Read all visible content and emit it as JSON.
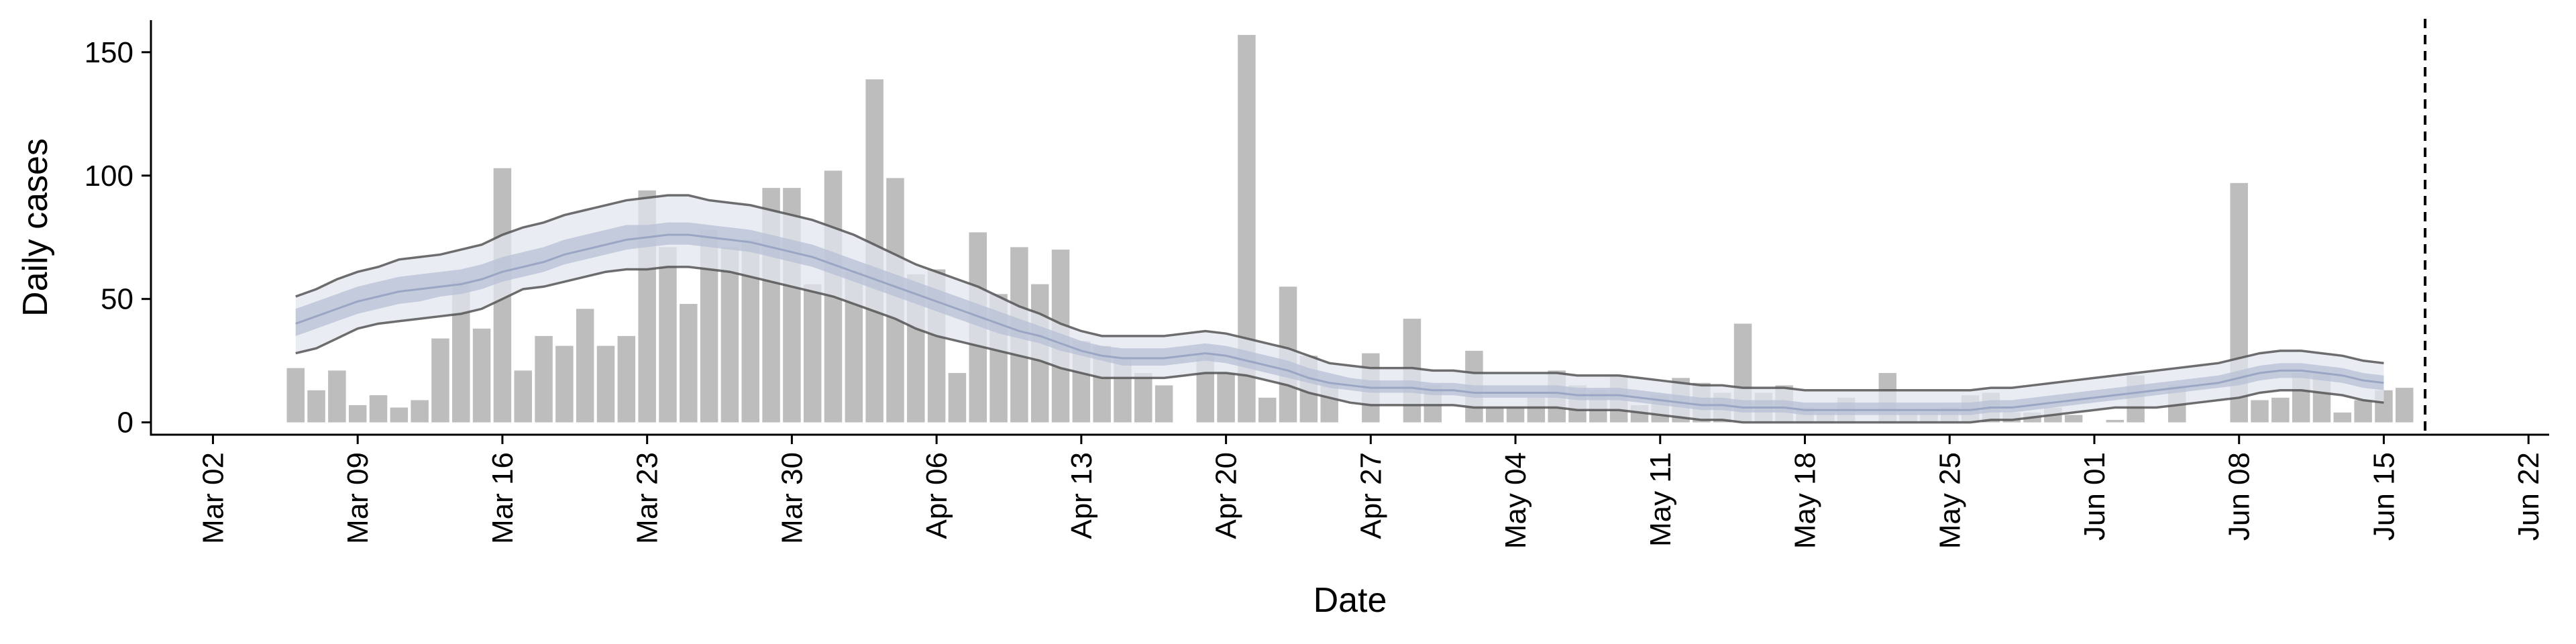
{
  "chart_data": {
    "type": "bar",
    "title": "",
    "xlabel": "Date",
    "ylabel": "Daily cases",
    "x_axis": {
      "range": [
        "2020-02-28",
        "2020-06-23"
      ],
      "ticks": [
        {
          "date": "2020-03-02",
          "label": "Mar 02"
        },
        {
          "date": "2020-03-09",
          "label": "Mar 09"
        },
        {
          "date": "2020-03-16",
          "label": "Mar 16"
        },
        {
          "date": "2020-03-23",
          "label": "Mar 23"
        },
        {
          "date": "2020-03-30",
          "label": "Mar 30"
        },
        {
          "date": "2020-04-06",
          "label": "Apr 06"
        },
        {
          "date": "2020-04-13",
          "label": "Apr 13"
        },
        {
          "date": "2020-04-20",
          "label": "Apr 20"
        },
        {
          "date": "2020-04-27",
          "label": "Apr 27"
        },
        {
          "date": "2020-05-04",
          "label": "May 04"
        },
        {
          "date": "2020-05-11",
          "label": "May 11"
        },
        {
          "date": "2020-05-18",
          "label": "May 18"
        },
        {
          "date": "2020-05-25",
          "label": "May 25"
        },
        {
          "date": "2020-06-01",
          "label": "Jun 01"
        },
        {
          "date": "2020-06-08",
          "label": "Jun 08"
        },
        {
          "date": "2020-06-15",
          "label": "Jun 15"
        },
        {
          "date": "2020-06-22",
          "label": "Jun 22"
        }
      ]
    },
    "y_axis": {
      "range": [
        -5,
        163
      ],
      "ticks": [
        0,
        50,
        100,
        150
      ]
    },
    "grid": false,
    "legend": "none",
    "colors": {
      "bars": "#bdbdbd",
      "ribbon_outer": "#e3e6ef",
      "ribbon_inner": "#b6c0d6",
      "median": "#9aa6c3",
      "interval_lines": "#555555",
      "vline": "#000000"
    },
    "cases": {
      "start_date": "2020-03-06",
      "values": [
        22,
        13,
        21,
        7,
        11,
        6,
        9,
        34,
        57,
        38,
        103,
        21,
        35,
        31,
        46,
        31,
        35,
        94,
        71,
        48,
        78,
        71,
        74,
        95,
        95,
        56,
        102,
        61,
        139,
        99,
        60,
        62,
        20,
        77,
        52,
        71,
        56,
        70,
        33,
        31,
        26,
        20,
        15,
        0,
        28,
        20,
        157,
        10,
        55,
        27,
        16,
        0,
        28,
        0,
        42,
        15,
        0,
        29,
        6,
        6,
        10,
        21,
        15,
        13,
        19,
        7,
        11,
        18,
        16,
        12,
        40,
        12,
        15,
        6,
        4,
        10,
        0,
        20,
        4,
        4,
        6,
        11,
        12,
        4,
        4,
        6,
        3,
        0,
        1,
        19,
        0,
        15,
        0,
        0,
        97,
        9,
        10,
        20,
        20,
        4,
        9,
        13,
        14
      ]
    },
    "estimate": {
      "start_date": "2020-03-06",
      "median": [
        40,
        43,
        46,
        49,
        51,
        53,
        54,
        55,
        56,
        58,
        61,
        63,
        65,
        68,
        70,
        72,
        74,
        75,
        76,
        76,
        75,
        74,
        73,
        71,
        69,
        67,
        64,
        61,
        58,
        55,
        52,
        49,
        46,
        43,
        40,
        37,
        35,
        32,
        29,
        27,
        26,
        26,
        26,
        27,
        28,
        27,
        25,
        23,
        21,
        18,
        16,
        15,
        14,
        14,
        14,
        13,
        13,
        12,
        12,
        12,
        12,
        12,
        11,
        11,
        11,
        10,
        9,
        8,
        7,
        7,
        6,
        6,
        6,
        5,
        5,
        5,
        5,
        5,
        5,
        5,
        5,
        5,
        6,
        6,
        7,
        8,
        9,
        10,
        11,
        12,
        13,
        14,
        15,
        16,
        18,
        20,
        21,
        21,
        20,
        19,
        17,
        16
      ],
      "inner_low": [
        35,
        38,
        41,
        44,
        46,
        48,
        49,
        51,
        52,
        54,
        57,
        59,
        61,
        64,
        66,
        68,
        70,
        71,
        72,
        72,
        71,
        70,
        69,
        67,
        65,
        63,
        60,
        57,
        54,
        51,
        48,
        45,
        42,
        39,
        36,
        34,
        32,
        29,
        27,
        25,
        23,
        23,
        23,
        24,
        25,
        24,
        22,
        20,
        18,
        16,
        14,
        13,
        12,
        12,
        12,
        11,
        11,
        10,
        10,
        10,
        10,
        10,
        9,
        9,
        9,
        8,
        7,
        6,
        5,
        5,
        4,
        4,
        4,
        3,
        3,
        3,
        3,
        3,
        3,
        3,
        3,
        3,
        4,
        4,
        5,
        6,
        7,
        8,
        9,
        10,
        11,
        12,
        13,
        14,
        15,
        17,
        18,
        18,
        17,
        16,
        14,
        13
      ],
      "inner_high": [
        46,
        49,
        52,
        55,
        57,
        59,
        60,
        61,
        62,
        64,
        67,
        69,
        71,
        74,
        76,
        78,
        80,
        80,
        81,
        81,
        80,
        79,
        78,
        76,
        74,
        72,
        69,
        66,
        63,
        60,
        57,
        54,
        51,
        48,
        45,
        42,
        39,
        36,
        33,
        31,
        30,
        30,
        30,
        31,
        32,
        31,
        29,
        27,
        25,
        22,
        20,
        18,
        17,
        17,
        17,
        16,
        16,
        15,
        15,
        15,
        15,
        15,
        14,
        14,
        14,
        13,
        12,
        11,
        10,
        10,
        9,
        9,
        9,
        8,
        8,
        8,
        8,
        8,
        8,
        8,
        8,
        8,
        9,
        9,
        10,
        11,
        12,
        13,
        14,
        15,
        16,
        17,
        18,
        19,
        21,
        23,
        24,
        24,
        23,
        22,
        20,
        19
      ],
      "outer_low": [
        28,
        30,
        34,
        38,
        40,
        41,
        42,
        43,
        44,
        46,
        50,
        54,
        55,
        57,
        59,
        61,
        62,
        62,
        63,
        63,
        62,
        61,
        59,
        57,
        55,
        53,
        51,
        48,
        45,
        42,
        38,
        35,
        33,
        31,
        29,
        27,
        25,
        22,
        20,
        18,
        18,
        18,
        18,
        19,
        20,
        20,
        19,
        17,
        15,
        12,
        10,
        8,
        7,
        7,
        7,
        7,
        7,
        6,
        6,
        6,
        6,
        6,
        5,
        5,
        5,
        4,
        3,
        2,
        1,
        1,
        0,
        0,
        0,
        0,
        0,
        0,
        0,
        0,
        0,
        0,
        0,
        0,
        1,
        1,
        2,
        3,
        4,
        5,
        6,
        6,
        6,
        7,
        8,
        9,
        10,
        12,
        13,
        13,
        12,
        11,
        9,
        8
      ],
      "outer_high": [
        51,
        54,
        58,
        61,
        63,
        66,
        67,
        68,
        70,
        72,
        76,
        79,
        81,
        84,
        86,
        88,
        90,
        91,
        92,
        92,
        90,
        89,
        88,
        86,
        84,
        82,
        79,
        76,
        72,
        68,
        64,
        61,
        58,
        55,
        51,
        47,
        44,
        40,
        37,
        35,
        35,
        35,
        35,
        36,
        37,
        36,
        34,
        32,
        30,
        27,
        24,
        23,
        22,
        22,
        22,
        21,
        21,
        20,
        20,
        20,
        20,
        20,
        19,
        19,
        19,
        18,
        17,
        16,
        15,
        15,
        14,
        14,
        14,
        13,
        13,
        13,
        13,
        13,
        13,
        13,
        13,
        13,
        14,
        14,
        15,
        16,
        17,
        18,
        19,
        20,
        21,
        22,
        23,
        24,
        26,
        28,
        29,
        29,
        28,
        27,
        25,
        24
      ]
    },
    "reference_line": {
      "date": "2020-06-17"
    }
  }
}
